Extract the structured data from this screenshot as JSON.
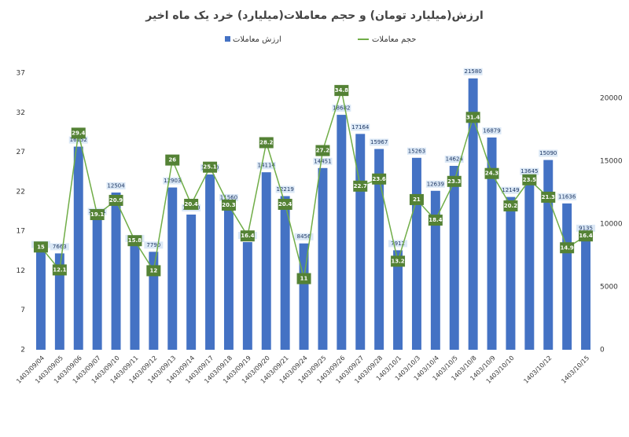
{
  "chart_data": {
    "type": "bar-line",
    "title": "ارزش(میلیارد تومان) و حجم معاملات(میلیارد) خرد یک ماه اخیر",
    "categories": [
      "1403/09/04",
      "1403/09/05",
      "1403/09/06",
      "1403/09/07",
      "1403/09/10",
      "1403/09/11",
      "1403/09/12",
      "1403/09/13",
      "1403/09/14",
      "1403/09/17",
      "1403/09/18",
      "1403/09/19",
      "1403/09/20",
      "1403/09/21",
      "1403/09/24",
      "1403/09/25",
      "1403/09/26",
      "1403/09/27",
      "1403/09/28",
      "1403/10/1",
      "1403/10/3",
      "1403/10/4",
      "1403/10/5",
      "1403/10/8",
      "1403/10/9",
      "1403/10/10",
      null,
      "1403/10/12",
      null,
      "1403/10/15"
    ],
    "series": [
      {
        "name": "ارزش معاملات",
        "type": "bar",
        "axis": "y2",
        "color": "#4472c4",
        "values": [
          7842,
          7663,
          16152,
          10461,
          12504,
          8320,
          7790,
          12903,
          10750,
          13940,
          11560,
          8560,
          14114,
          12219,
          8456,
          14451,
          18682,
          17164,
          15967,
          7912,
          15263,
          12639,
          14624,
          21580,
          16879,
          12149,
          13645,
          15090,
          11636,
          9135
        ]
      },
      {
        "name": "حجم معاملات",
        "type": "line",
        "axis": "y",
        "color": "#70ad47",
        "marker_color": "#548235",
        "values": [
          15,
          12.1,
          29.4,
          19.1,
          20.9,
          15.8,
          12,
          26,
          20.4,
          25.1,
          20.3,
          16.4,
          28.2,
          20.4,
          11,
          27.2,
          34.8,
          22.7,
          23.6,
          13.2,
          21,
          18.4,
          23.3,
          31.4,
          24.3,
          20.2,
          23.5,
          21.3,
          14.9,
          16.4
        ]
      }
    ],
    "ylim": [
      2,
      37
    ],
    "yticks": [
      2,
      7,
      12,
      17,
      22,
      27,
      32,
      37
    ],
    "y2lim": [
      0,
      22000
    ],
    "y2ticks": [
      0,
      5000,
      10000,
      15000,
      20000
    ],
    "grid": false,
    "legend": "top"
  }
}
